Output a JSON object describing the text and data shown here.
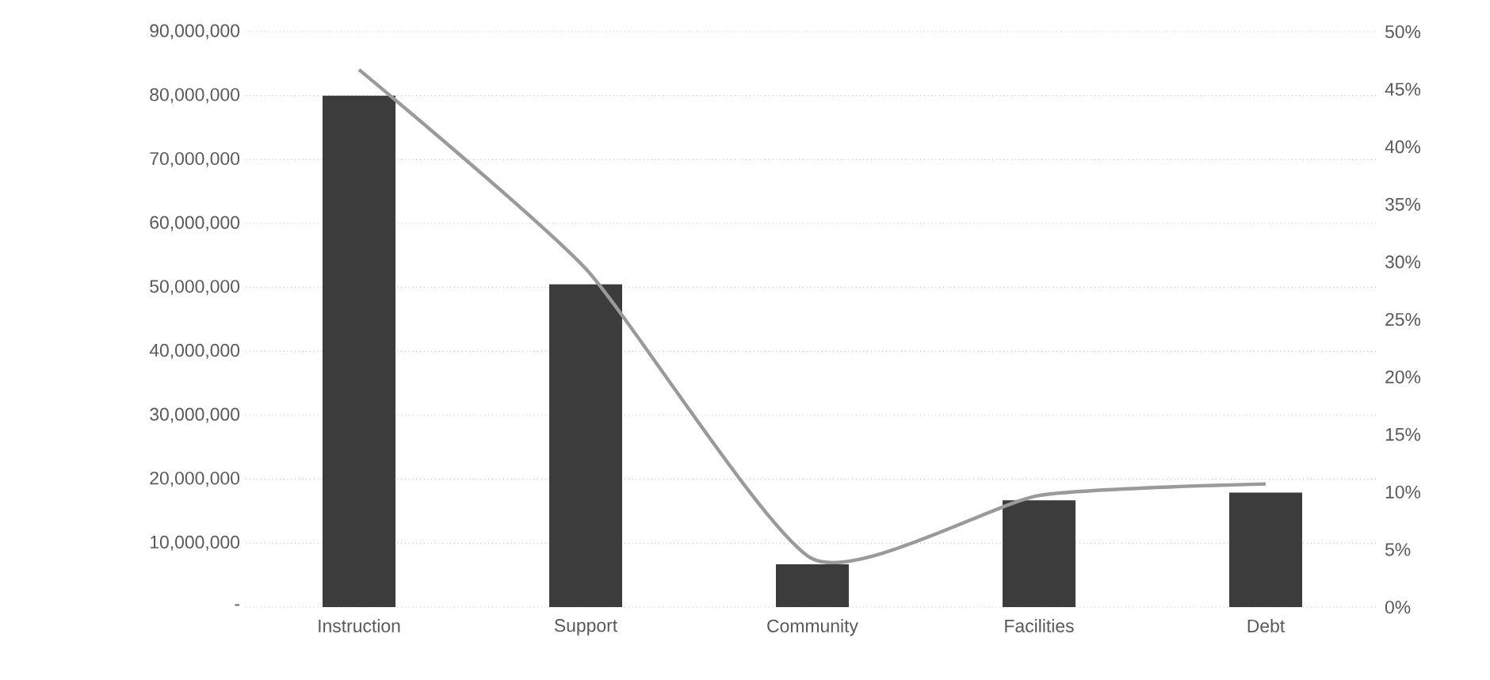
{
  "chart_data": {
    "type": "bar",
    "categories": [
      "Instruction",
      "Support",
      "Community",
      "Facilities",
      "Debt"
    ],
    "series": [
      {
        "color": "#3c3c3c",
        "values": [
          80000000,
          50500000,
          6700000,
          16700000,
          17900000
        ]
      },
      {
        "type": "line",
        "axis": "y2",
        "color": "#9a9a9a",
        "values": [
          46.7,
          29.4,
          4.2,
          9.7,
          10.7
        ]
      }
    ],
    "ylim": [
      0,
      90000000
    ],
    "yticks": [
      {
        "value": 0,
        "label": "-"
      },
      {
        "value": 10000000,
        "label": "10,000,000"
      },
      {
        "value": 20000000,
        "label": "20,000,000"
      },
      {
        "value": 30000000,
        "label": "30,000,000"
      },
      {
        "value": 40000000,
        "label": "40,000,000"
      },
      {
        "value": 50000000,
        "label": "50,000,000"
      },
      {
        "value": 60000000,
        "label": "60,000,000"
      },
      {
        "value": 70000000,
        "label": "70,000,000"
      },
      {
        "value": 80000000,
        "label": "80,000,000"
      },
      {
        "value": 90000000,
        "label": "90,000,000"
      }
    ],
    "y2lim": [
      0,
      50
    ],
    "y2ticks": [
      {
        "value": 0,
        "label": "0%"
      },
      {
        "value": 5,
        "label": "5%"
      },
      {
        "value": 10,
        "label": "10%"
      },
      {
        "value": 15,
        "label": "15%"
      },
      {
        "value": 20,
        "label": "20%"
      },
      {
        "value": 25,
        "label": "25%"
      },
      {
        "value": 30,
        "label": "30%"
      },
      {
        "value": 35,
        "label": "35%"
      },
      {
        "value": 40,
        "label": "40%"
      },
      {
        "value": 45,
        "label": "45%"
      },
      {
        "value": 50,
        "label": "50%"
      }
    ],
    "grid": "y",
    "legend": false,
    "marker": "none",
    "line_style": "solid"
  }
}
